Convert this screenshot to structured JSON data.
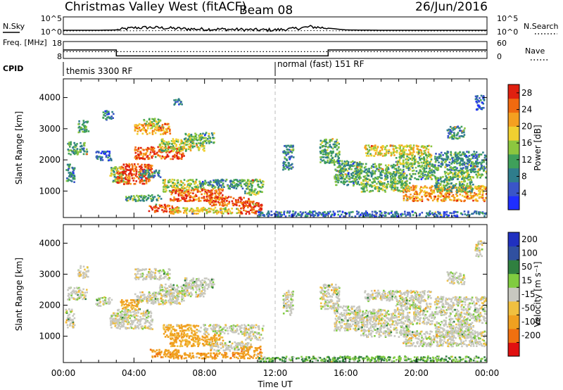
{
  "header": {
    "station": "Christmas Valley West (fitACF)",
    "beam": "Beam 08",
    "date": "26/Jun/2016"
  },
  "chart_data": [
    {
      "type": "line",
      "panel": "noise",
      "ylabel_left": "N.Sky",
      "ylabel_right": "N.Search",
      "left_ticks": [
        "10^5",
        "10^0"
      ],
      "right_ticks": [
        "10^5",
        "10^0"
      ],
      "series": [
        {
          "name": "N.Sky",
          "style": "solid",
          "x": [
            0,
            2,
            3,
            3.5,
            4,
            5,
            6,
            7,
            8,
            9,
            10,
            11,
            12,
            13,
            14,
            15,
            16,
            18,
            20,
            22,
            24
          ],
          "y": [
            1.2,
            1.2,
            1.3,
            1.6,
            1.9,
            2.0,
            1.8,
            1.6,
            1.5,
            1.5,
            1.4,
            1.3,
            1.3,
            1.6,
            2.2,
            1.8,
            1.3,
            1.2,
            1.2,
            1.2,
            1.2
          ]
        },
        {
          "name": "N.Search",
          "style": "dotted",
          "x": [
            0,
            6,
            12,
            14,
            18,
            24
          ],
          "y": [
            1.0,
            1.1,
            1.0,
            1.1,
            1.0,
            1.0
          ]
        }
      ]
    },
    {
      "type": "line",
      "panel": "frequency",
      "ylabel_left": "Freq. [MHz]",
      "ylabel_right": "Nave",
      "left_ticks": [
        "18",
        "8"
      ],
      "right_ticks": [
        "60",
        "0"
      ],
      "series": [
        {
          "name": "Freq.",
          "style": "solid",
          "x": [
            0,
            3,
            3,
            15,
            15,
            24
          ],
          "y": [
            13,
            13,
            9.5,
            9.5,
            13,
            13
          ]
        },
        {
          "name": "Nave",
          "style": "dotted",
          "x": [
            0,
            24
          ],
          "y": [
            12,
            12
          ]
        }
      ]
    },
    {
      "type": "table",
      "panel": "cpid",
      "label": "CPID",
      "entries": [
        {
          "start": 0,
          "text": "themis 3300 RF"
        },
        {
          "start": 12,
          "text": "normal (fast) 151 RF"
        }
      ]
    },
    {
      "type": "heatmap",
      "panel": "power",
      "ylabel": "Slant Range [km]",
      "yticks": [
        1000,
        2000,
        3000,
        4000
      ],
      "ylim": [
        150,
        4600
      ],
      "xlim": [
        0,
        24
      ],
      "colorbar": {
        "label": "Power [dB]",
        "ticks": [
          "28",
          "24",
          "20",
          "16",
          "12",
          "8",
          "4"
        ],
        "range": [
          0,
          30
        ]
      },
      "patches": [
        {
          "x0": 0.1,
          "x1": 0.6,
          "y0": 1300,
          "y1": 1900,
          "v": 10
        },
        {
          "x0": 0.2,
          "x1": 1.3,
          "y0": 2200,
          "y1": 2600,
          "v": 12
        },
        {
          "x0": 0.8,
          "x1": 1.4,
          "y0": 2900,
          "y1": 3300,
          "v": 12
        },
        {
          "x0": 1.8,
          "x1": 2.7,
          "y0": 2000,
          "y1": 2300,
          "v": 6
        },
        {
          "x0": 2.6,
          "x1": 3.4,
          "y0": 1300,
          "y1": 1800,
          "v": 14
        },
        {
          "x0": 3.0,
          "x1": 5.0,
          "y0": 1250,
          "y1": 1900,
          "v": 27
        },
        {
          "x0": 4.0,
          "x1": 6.8,
          "y0": 2050,
          "y1": 2450,
          "v": 25
        },
        {
          "x0": 5.4,
          "x1": 8.0,
          "y0": 2300,
          "y1": 2700,
          "v": 16
        },
        {
          "x0": 6.8,
          "x1": 8.5,
          "y0": 2550,
          "y1": 2900,
          "v": 13
        },
        {
          "x0": 4.0,
          "x1": 6.0,
          "y0": 2850,
          "y1": 3200,
          "v": 22
        },
        {
          "x0": 2.2,
          "x1": 2.8,
          "y0": 3300,
          "y1": 3600,
          "v": 8
        },
        {
          "x0": 4.5,
          "x1": 5.5,
          "y0": 3100,
          "y1": 3350,
          "v": 15
        },
        {
          "x0": 6.2,
          "x1": 6.7,
          "y0": 3800,
          "y1": 4000,
          "v": 8
        },
        {
          "x0": 4.2,
          "x1": 5.5,
          "y0": 1450,
          "y1": 1700,
          "v": 10
        },
        {
          "x0": 5.6,
          "x1": 7.6,
          "y0": 1000,
          "y1": 1400,
          "v": 16
        },
        {
          "x0": 6.0,
          "x1": 9.0,
          "y0": 700,
          "y1": 1100,
          "v": 25
        },
        {
          "x0": 8.2,
          "x1": 10.6,
          "y0": 550,
          "y1": 850,
          "v": 25
        },
        {
          "x0": 7.6,
          "x1": 10.2,
          "y0": 1100,
          "y1": 1400,
          "v": 10
        },
        {
          "x0": 4.8,
          "x1": 6.5,
          "y0": 350,
          "y1": 600,
          "v": 27
        },
        {
          "x0": 6.0,
          "x1": 10.0,
          "y0": 300,
          "y1": 500,
          "v": 18
        },
        {
          "x0": 3.5,
          "x1": 5.5,
          "y0": 700,
          "y1": 900,
          "v": 12
        },
        {
          "x0": 10.0,
          "x1": 11.2,
          "y0": 300,
          "y1": 700,
          "v": 28
        },
        {
          "x0": 10.2,
          "x1": 11.3,
          "y0": 900,
          "y1": 1400,
          "v": 14
        },
        {
          "x0": 11.0,
          "x1": 24.0,
          "y0": 200,
          "y1": 380,
          "v": 7
        },
        {
          "x0": 14.5,
          "x1": 15.6,
          "y0": 1900,
          "y1": 2700,
          "v": 12
        },
        {
          "x0": 15.3,
          "x1": 16.8,
          "y0": 1200,
          "y1": 2000,
          "v": 12
        },
        {
          "x0": 16.5,
          "x1": 21.0,
          "y0": 1400,
          "y1": 1900,
          "v": 12
        },
        {
          "x0": 17.0,
          "x1": 20.8,
          "y0": 2150,
          "y1": 2500,
          "v": 18
        },
        {
          "x0": 18.8,
          "x1": 20.8,
          "y0": 1900,
          "y1": 2200,
          "v": 15
        },
        {
          "x0": 16.8,
          "x1": 19.6,
          "y0": 1000,
          "y1": 1400,
          "v": 14
        },
        {
          "x0": 19.2,
          "x1": 24.0,
          "y0": 700,
          "y1": 1200,
          "v": 22
        },
        {
          "x0": 21.0,
          "x1": 23.2,
          "y0": 1000,
          "y1": 1500,
          "v": 12
        },
        {
          "x0": 21.5,
          "x1": 24.0,
          "y0": 1450,
          "y1": 1700,
          "v": 14
        },
        {
          "x0": 21.0,
          "x1": 24.0,
          "y0": 1700,
          "y1": 2300,
          "v": 10
        },
        {
          "x0": 21.7,
          "x1": 22.7,
          "y0": 2700,
          "y1": 3100,
          "v": 10
        },
        {
          "x0": 23.3,
          "x1": 23.8,
          "y0": 3600,
          "y1": 4100,
          "v": 6
        },
        {
          "x0": 12.4,
          "x1": 13.0,
          "y0": 1700,
          "y1": 2500,
          "v": 9
        }
      ]
    },
    {
      "type": "heatmap",
      "panel": "velocity",
      "ylabel": "Slant Range [km]",
      "yticks": [
        1000,
        2000,
        3000,
        4000
      ],
      "ylim": [
        150,
        4600
      ],
      "xlim": [
        0,
        24
      ],
      "xticks": [
        "00:00",
        "04:00",
        "08:00",
        "12:00",
        "16:00",
        "20:00",
        "00:00"
      ],
      "xlabel": "Time UT",
      "colorbar": {
        "label": "Velocity [m s⁻¹]",
        "ticks": [
          "200",
          "100",
          "50",
          "15",
          "-15",
          "-50",
          "-100",
          "-200"
        ],
        "range": [
          -250,
          250
        ]
      },
      "patches": [
        {
          "x0": 0.1,
          "x1": 0.6,
          "y0": 1300,
          "y1": 1900,
          "v": 0
        },
        {
          "x0": 0.2,
          "x1": 1.3,
          "y0": 2200,
          "y1": 2600,
          "v": 0
        },
        {
          "x0": 0.8,
          "x1": 1.4,
          "y0": 2900,
          "y1": 3300,
          "v": 0
        },
        {
          "x0": 1.8,
          "x1": 2.7,
          "y0": 2000,
          "y1": 2300,
          "v": 0
        },
        {
          "x0": 2.6,
          "x1": 3.4,
          "y0": 1300,
          "y1": 1800,
          "v": 0
        },
        {
          "x0": 3.0,
          "x1": 5.0,
          "y0": 1250,
          "y1": 1900,
          "v": 0
        },
        {
          "x0": 4.0,
          "x1": 6.8,
          "y0": 2050,
          "y1": 2450,
          "v": 0
        },
        {
          "x0": 5.4,
          "x1": 8.0,
          "y0": 2300,
          "y1": 2700,
          "v": 0
        },
        {
          "x0": 6.8,
          "x1": 8.5,
          "y0": 2550,
          "y1": 2900,
          "v": 0
        },
        {
          "x0": 4.0,
          "x1": 6.0,
          "y0": 2850,
          "y1": 3200,
          "v": 0
        },
        {
          "x0": 3.2,
          "x1": 4.3,
          "y0": 1900,
          "y1": 2200,
          "v": -40
        },
        {
          "x0": 5.6,
          "x1": 7.6,
          "y0": 1000,
          "y1": 1400,
          "v": -40
        },
        {
          "x0": 6.0,
          "x1": 9.0,
          "y0": 700,
          "y1": 1100,
          "v": -40
        },
        {
          "x0": 8.2,
          "x1": 10.6,
          "y0": 550,
          "y1": 850,
          "v": 0
        },
        {
          "x0": 7.6,
          "x1": 10.2,
          "y0": 1100,
          "y1": 1400,
          "v": 0
        },
        {
          "x0": 4.8,
          "x1": 6.5,
          "y0": 350,
          "y1": 600,
          "v": -60
        },
        {
          "x0": 6.0,
          "x1": 10.0,
          "y0": 300,
          "y1": 500,
          "v": -60
        },
        {
          "x0": 10.0,
          "x1": 11.2,
          "y0": 300,
          "y1": 700,
          "v": -60
        },
        {
          "x0": 10.2,
          "x1": 11.3,
          "y0": 900,
          "y1": 1400,
          "v": 0
        },
        {
          "x0": 11.0,
          "x1": 24.0,
          "y0": 200,
          "y1": 380,
          "v": 30
        },
        {
          "x0": 14.5,
          "x1": 15.6,
          "y0": 1900,
          "y1": 2700,
          "v": 0
        },
        {
          "x0": 15.3,
          "x1": 16.8,
          "y0": 1200,
          "y1": 2000,
          "v": 0
        },
        {
          "x0": 16.5,
          "x1": 21.0,
          "y0": 1400,
          "y1": 1900,
          "v": 0
        },
        {
          "x0": 17.0,
          "x1": 20.8,
          "y0": 2150,
          "y1": 2500,
          "v": 0
        },
        {
          "x0": 18.8,
          "x1": 20.8,
          "y0": 1900,
          "y1": 2200,
          "v": 0
        },
        {
          "x0": 16.8,
          "x1": 19.6,
          "y0": 1000,
          "y1": 1400,
          "v": 0
        },
        {
          "x0": 19.2,
          "x1": 24.0,
          "y0": 700,
          "y1": 1200,
          "v": 0
        },
        {
          "x0": 21.0,
          "x1": 23.2,
          "y0": 1000,
          "y1": 1500,
          "v": 0
        },
        {
          "x0": 21.5,
          "x1": 24.0,
          "y0": 1450,
          "y1": 1700,
          "v": 0
        },
        {
          "x0": 21.0,
          "x1": 24.0,
          "y0": 1700,
          "y1": 2300,
          "v": 0
        },
        {
          "x0": 21.7,
          "x1": 22.7,
          "y0": 2700,
          "y1": 3100,
          "v": 0
        },
        {
          "x0": 23.3,
          "x1": 23.8,
          "y0": 3600,
          "y1": 4100,
          "v": 0
        },
        {
          "x0": 12.4,
          "x1": 13.0,
          "y0": 1700,
          "y1": 2500,
          "v": 0
        }
      ]
    }
  ]
}
